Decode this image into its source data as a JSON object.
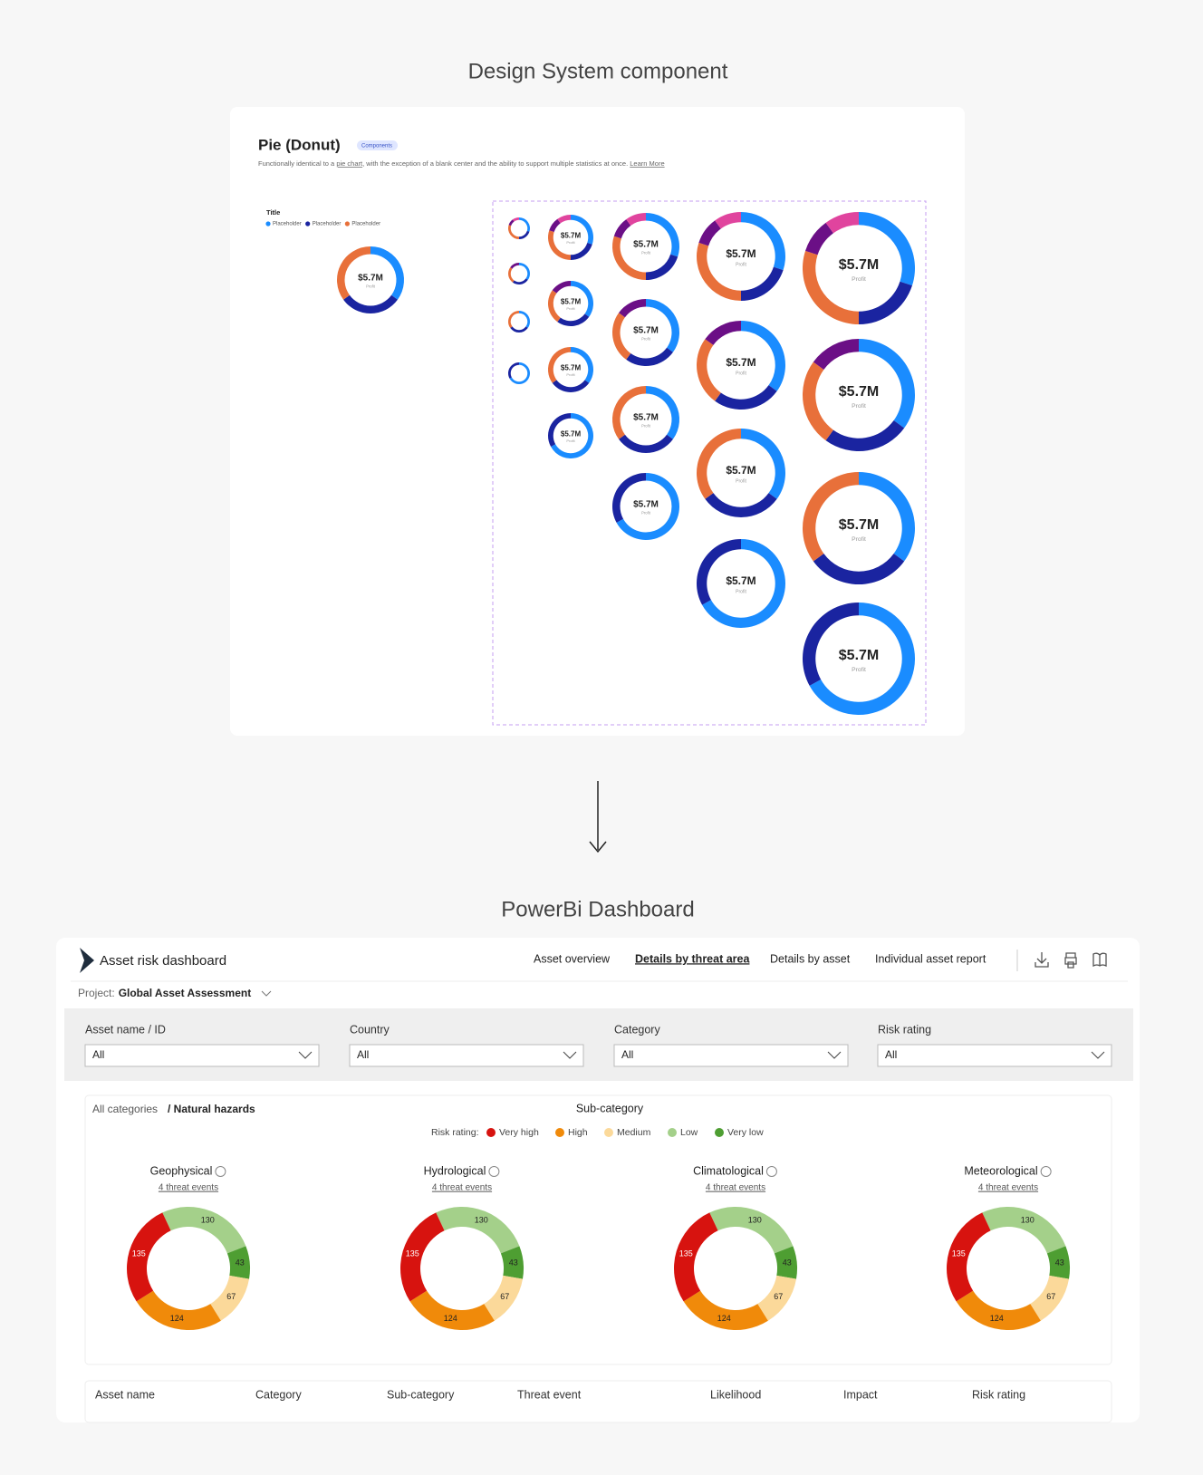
{
  "heading": "Design System component",
  "design": {
    "title": "Pie (Donut)",
    "badge": "Components",
    "description": [
      "Functionally identical to a ",
      "pie chart",
      ", with the exception of a blank center and the ability to support multiple statistics at once. ",
      "Learn More"
    ],
    "legend": {
      "title": "Title",
      "items": [
        "Placeholder",
        "Placeholder",
        "Placeholder"
      ]
    },
    "sample": {
      "value": "$5.7M",
      "label": "Profit"
    },
    "variants": [
      {
        "values": [
          30,
          20,
          30,
          10,
          10
        ],
        "colors": [
          "#1a8cff",
          "#1a24a0",
          "#e8703a",
          "#6b0f86",
          "#e0449e"
        ]
      },
      {
        "values": [
          35,
          25,
          25,
          15
        ],
        "colors": [
          "#1a8cff",
          "#1a24a0",
          "#e8703a",
          "#6b0f86"
        ]
      },
      {
        "values": [
          35,
          30,
          35
        ],
        "colors": [
          "#1a8cff",
          "#1a24a0",
          "#e8703a"
        ]
      },
      {
        "values": [
          67,
          33
        ],
        "colors": [
          "#1a8cff",
          "#1a24a0"
        ]
      }
    ]
  },
  "heading2": "PowerBi Dashboard",
  "dashboard": {
    "brand": "Asset risk dashboard",
    "nav": [
      {
        "label": "Asset overview",
        "active": false
      },
      {
        "label": "Details by threat area",
        "active": true
      },
      {
        "label": "Details by asset",
        "active": false
      },
      {
        "label": "Individual asset report",
        "active": false
      }
    ],
    "project_label": "Project:",
    "project": "Global Asset Assessment",
    "filters": [
      {
        "label": "Asset name / ID",
        "value": "All"
      },
      {
        "label": "Country",
        "value": "All"
      },
      {
        "label": "Category",
        "value": "All"
      },
      {
        "label": "Risk rating",
        "value": "All"
      }
    ],
    "breadcrumb": [
      "All categories",
      "/ Natural hazards"
    ],
    "panel_title": "Sub-category",
    "legend_title": "Risk rating:",
    "table_headers": [
      "Asset name",
      "Category",
      "Sub-category",
      "Threat event",
      "Likelihood",
      "Impact",
      "Risk rating"
    ]
  },
  "chart_data": [
    {
      "type": "donut",
      "title": "Geophysical",
      "subtitle": "4 threat events",
      "categories": [
        "Very high",
        "High",
        "Medium",
        "Low",
        "Very low"
      ],
      "colors": [
        "#d7130f",
        "#f08a0a",
        "#fbd99a",
        "#a4d08a",
        "#4e9e32"
      ],
      "values": [
        135,
        124,
        67,
        130,
        43
      ]
    },
    {
      "type": "donut",
      "title": "Hydrological",
      "subtitle": "4 threat events",
      "categories": [
        "Very high",
        "High",
        "Medium",
        "Low",
        "Very low"
      ],
      "colors": [
        "#d7130f",
        "#f08a0a",
        "#fbd99a",
        "#a4d08a",
        "#4e9e32"
      ],
      "values": [
        135,
        124,
        67,
        130,
        43
      ]
    },
    {
      "type": "donut",
      "title": "Climatological",
      "subtitle": "4 threat events",
      "categories": [
        "Very high",
        "High",
        "Medium",
        "Low",
        "Very low"
      ],
      "colors": [
        "#d7130f",
        "#f08a0a",
        "#fbd99a",
        "#a4d08a",
        "#4e9e32"
      ],
      "values": [
        135,
        124,
        67,
        130,
        43
      ]
    },
    {
      "type": "donut",
      "title": "Meteorological",
      "subtitle": "4 threat events",
      "categories": [
        "Very high",
        "High",
        "Medium",
        "Low",
        "Very low"
      ],
      "colors": [
        "#d7130f",
        "#f08a0a",
        "#fbd99a",
        "#a4d08a",
        "#4e9e32"
      ],
      "values": [
        135,
        124,
        67,
        130,
        43
      ]
    }
  ]
}
